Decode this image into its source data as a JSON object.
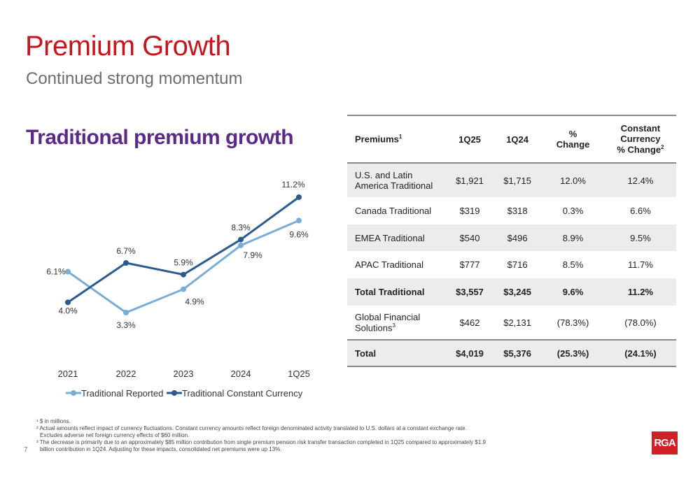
{
  "page": {
    "title": "Premium Growth",
    "subtitle": "Continued strong momentum",
    "section_heading": "Traditional premium growth",
    "page_number": "7",
    "logo_text": "RGA"
  },
  "colors": {
    "title": "#c4161c",
    "heading": "#5b2a86",
    "series_reported": "#7aadd6",
    "series_constant": "#2b5a8f",
    "logo": "#d21f26"
  },
  "chart_data": {
    "type": "line",
    "x": [
      "2021",
      "2022",
      "2023",
      "2024",
      "1Q25"
    ],
    "series": [
      {
        "name": "Traditional Reported",
        "values": [
          6.1,
          3.3,
          4.9,
          7.9,
          9.6
        ],
        "labels": [
          "6.1%",
          "3.3%",
          "4.9%",
          "7.9%",
          "9.6%"
        ]
      },
      {
        "name": "Traditional Constant Currency",
        "values": [
          4.0,
          6.7,
          5.9,
          8.3,
          11.2
        ],
        "labels": [
          "4.0%",
          "6.7%",
          "5.9%",
          "8.3%",
          "11.2%"
        ]
      }
    ],
    "ylim": [
      2,
      12
    ],
    "grid": false,
    "legend_position": "bottom-left"
  },
  "table": {
    "headers": [
      "Premiums",
      "1Q25",
      "1Q24",
      "%\nChange",
      "Constant\nCurrency\n% Change"
    ],
    "header_sups": [
      "1",
      "",
      "",
      "",
      "2"
    ],
    "rows": [
      {
        "cells": [
          "U.S. and Latin America Traditional",
          "$1,921",
          "$1,715",
          "12.0%",
          "12.4%"
        ],
        "shade": true,
        "bold": false
      },
      {
        "cells": [
          "Canada Traditional",
          "$319",
          "$318",
          "0.3%",
          "6.6%"
        ],
        "shade": false,
        "bold": false
      },
      {
        "cells": [
          "EMEA Traditional",
          "$540",
          "$496",
          "8.9%",
          "9.5%"
        ],
        "shade": true,
        "bold": false
      },
      {
        "cells": [
          "APAC Traditional",
          "$777",
          "$716",
          "8.5%",
          "11.7%"
        ],
        "shade": false,
        "bold": false
      },
      {
        "cells": [
          "Total Traditional",
          "$3,557",
          "$3,245",
          "9.6%",
          "11.2%"
        ],
        "shade": true,
        "bold": true
      },
      {
        "cells": [
          "Global Financial Solutions",
          "$462",
          "$2,131",
          "(78.3%)",
          "(78.0%)"
        ],
        "shade": false,
        "bold": false,
        "sup": "3"
      },
      {
        "cells": [
          "Total",
          "$4,019",
          "$5,376",
          "(25.3%)",
          "(24.1%)"
        ],
        "shade": true,
        "bold": true
      }
    ]
  },
  "footnotes": [
    "¹ $ in millions.",
    "² Actual amounts reflect impact of currency fluctuations. Constant currency amounts reflect foreign denominated activity translated to U.S. dollars at a constant exchange rate.",
    "Excludes adverse net foreign currency effects of $60 million.",
    "³ The decrease is primarily due to an approximately $85 million contribution from single premium pension risk transfer transaction completed in 1Q25 compared to approximately $1.9",
    "billion contribution in 1Q24. Adjusting for these impacts, consolidated net premiums were up 13%."
  ]
}
